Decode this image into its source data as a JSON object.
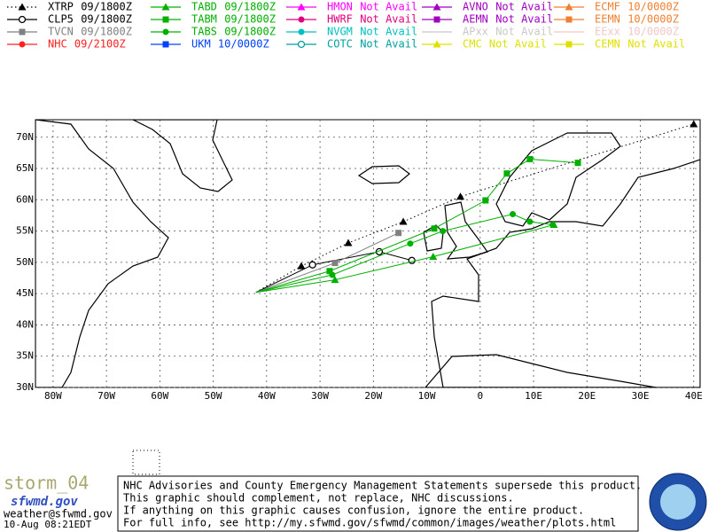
{
  "legend": [
    {
      "name": "XTRP",
      "status": "09/1800Z",
      "color": "#000000",
      "marker": "triangle",
      "dash": true,
      "track": {
        "lon": [
          -42,
          -33.5,
          -24.7,
          -14.4,
          -3.7,
          40
        ],
        "lat": [
          45.2,
          49.4,
          53.1,
          56.5,
          60.5,
          72.1
        ]
      }
    },
    {
      "name": "CLP5",
      "status": "09/1800Z",
      "color": "#000000",
      "marker": "circle-open",
      "track": {
        "lon": [
          -42,
          -31.4,
          -18.9,
          -12.8
        ],
        "lat": [
          45.2,
          49.6,
          51.7,
          50.3
        ]
      }
    },
    {
      "name": "TVCN",
      "status": "09/1800Z",
      "color": "#808080",
      "marker": "square",
      "track": {
        "lon": [
          -42,
          -27.2,
          -15.3
        ],
        "lat": [
          45.2,
          49.9,
          54.7
        ]
      }
    },
    {
      "name": "NHC",
      "status": "09/2100Z",
      "color": "#ff2020",
      "marker": "circle"
    },
    {
      "name": "TABD",
      "status": "09/1800Z",
      "color": "#00b000",
      "marker": "triangle",
      "track": {
        "lon": [
          -42,
          -27.2,
          -8.8,
          13.8
        ],
        "lat": [
          45.2,
          47.2,
          50.9,
          56.0
        ]
      }
    },
    {
      "name": "TABM",
      "status": "09/1800Z",
      "color": "#00b000",
      "marker": "square",
      "track": {
        "lon": [
          -42,
          -28.2,
          -8.6,
          1,
          5,
          9.3,
          18.3
        ],
        "lat": [
          45.2,
          48.6,
          55.4,
          59.9,
          64.2,
          66.5,
          65.9
        ]
      }
    },
    {
      "name": "TABS",
      "status": "09/1800Z",
      "color": "#00b000",
      "marker": "circle",
      "track": {
        "lon": [
          -42,
          -27.7,
          -13.1,
          -7,
          6.1,
          9.3,
          13.6
        ],
        "lat": [
          45.2,
          48.0,
          53.0,
          55.0,
          57.7,
          56.5,
          56.0
        ]
      }
    },
    {
      "name": "UKM",
      "status": "10/0000Z",
      "color": "#0040ff",
      "marker": "square"
    },
    {
      "name": "HMON",
      "status": "Not Avail",
      "color": "#ff00ff",
      "marker": "triangle"
    },
    {
      "name": "HWRF",
      "status": "Not Avail",
      "color": "#e0007f",
      "marker": "circle"
    },
    {
      "name": "NVGM",
      "status": "Not Avail",
      "color": "#00c0c0",
      "marker": "circle"
    },
    {
      "name": "COTC",
      "status": "Not Avail",
      "color": "#00a0a0",
      "marker": "circle-open"
    },
    {
      "name": "AVNO",
      "status": "Not Avail",
      "color": "#a000c0",
      "marker": "triangle"
    },
    {
      "name": "AEMN",
      "status": "Not Avail",
      "color": "#a000c0",
      "marker": "square"
    },
    {
      "name": "APxx",
      "status": "Not Avail",
      "color": "#c8c8c8",
      "marker": "none"
    },
    {
      "name": "CMC",
      "status": "Not Avail",
      "color": "#e0e000",
      "marker": "triangle"
    },
    {
      "name": "ECMF",
      "status": "10/0000Z",
      "color": "#f08030",
      "marker": "triangle"
    },
    {
      "name": "EEMN",
      "status": "10/0000Z",
      "color": "#f08030",
      "marker": "square"
    },
    {
      "name": "EExx",
      "status": "10/0000Z",
      "color": "#f0c8c8",
      "marker": "none"
    },
    {
      "name": "CEMN",
      "status": "Not Avail",
      "color": "#e0e000",
      "marker": "square"
    }
  ],
  "map": {
    "xlim": [
      -83.3,
      41.2
    ],
    "ylim": [
      30,
      72.8
    ],
    "xticks": [
      {
        "value": -80,
        "label": "80W"
      },
      {
        "value": -70,
        "label": "70W"
      },
      {
        "value": -60,
        "label": "60W"
      },
      {
        "value": -50,
        "label": "50W"
      },
      {
        "value": -40,
        "label": "40W"
      },
      {
        "value": -30,
        "label": "30W"
      },
      {
        "value": -20,
        "label": "20W"
      },
      {
        "value": -10,
        "label": "10W"
      },
      0,
      {
        "value": 10,
        "label": "10E"
      },
      {
        "value": 20,
        "label": "20E"
      },
      {
        "value": 30,
        "label": "30E"
      },
      {
        "value": 40,
        "label": "40E"
      }
    ],
    "yticks": [
      {
        "value": 30,
        "label": "30N"
      },
      {
        "value": 35,
        "label": "35N"
      },
      {
        "value": 40,
        "label": "40N"
      },
      {
        "value": 45,
        "label": "45N"
      },
      {
        "value": 50,
        "label": "50N"
      },
      {
        "value": 55,
        "label": "55N"
      },
      {
        "value": 60,
        "label": "60N"
      },
      {
        "value": 65,
        "label": "65N"
      },
      {
        "value": 70,
        "label": "70N"
      }
    ],
    "grid": true
  },
  "footer": {
    "storm": "storm_04",
    "site": "sfwmd.gov",
    "email": "weather@sfwmd.gov",
    "timestamp": "10-Aug 08:21EDT",
    "disclaimer": [
      "NHC Advisories and County Emergency Management Statements supersede this product.",
      "This graphic should complement, not replace, NHC discussions.",
      "If anything on this graphic causes confusion, ignore the entire product.",
      "For full info, see  http://my.sfwmd.gov/sfwmd/common/images/weather/plots.html"
    ]
  }
}
